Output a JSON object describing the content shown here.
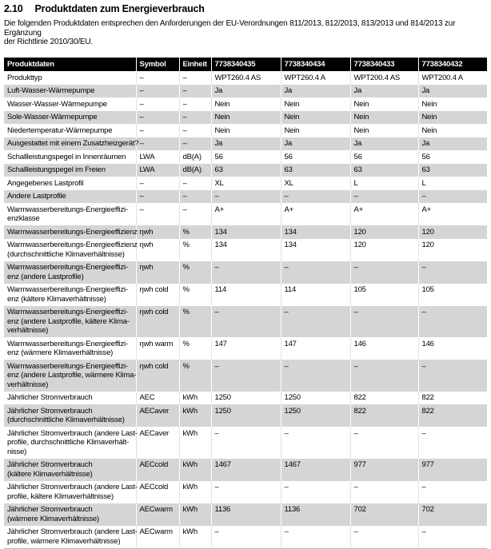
{
  "page": {
    "section_number": "2.10",
    "title": "Produktdaten zum Energieverbrauch",
    "intro": "Die folgenden Produktdaten entsprechen den Anforderungen der EU-Verordnungen 811/2013, 812/2013, 813/2013 und 814/2013 zur Ergänzung\nder Richtlinie 2010/30/EU."
  },
  "colors": {
    "header_bg": "#000000",
    "header_text": "#ffffff",
    "shaded_row_bg": "#d5d5d5",
    "text": "#000000"
  },
  "table": {
    "columns": [
      "Produktdaten",
      "Symbol",
      "Einheit",
      "7738340435",
      "7738340434",
      "7738340433",
      "7738340432"
    ],
    "rows": [
      {
        "label": "Produkttyp",
        "symbol": "–",
        "unit": "–",
        "values": [
          "WPT260.4 AS",
          "WPT260.4 A",
          "WPT200.4 AS",
          "WPT200.4 A"
        ]
      },
      {
        "label": "Luft-Wasser-Wärmepumpe",
        "symbol": "–",
        "unit": "–",
        "values": [
          "Ja",
          "Ja",
          "Ja",
          "Ja"
        ]
      },
      {
        "label": "Wasser-Wasser-Wärmepumpe",
        "symbol": "–",
        "unit": "–",
        "values": [
          "Nein",
          "Nein",
          "Nein",
          "Nein"
        ]
      },
      {
        "label": "Sole-Wasser-Wärmepumpe",
        "symbol": "–",
        "unit": "–",
        "values": [
          "Nein",
          "Nein",
          "Nein",
          "Nein"
        ]
      },
      {
        "label": "Niedertemperatur-Wärmepumpe",
        "symbol": "–",
        "unit": "–",
        "values": [
          "Nein",
          "Nein",
          "Nein",
          "Nein"
        ]
      },
      {
        "label": "Ausgestattet mit einem Zusatzheizgerät?",
        "symbol": "–",
        "unit": "–",
        "values": [
          "Ja",
          "Ja",
          "Ja",
          "Ja"
        ]
      },
      {
        "label": "Schallleistungspegel in Innenräumen",
        "symbol": "LWA",
        "unit": "dB(A)",
        "values": [
          "56",
          "56",
          "56",
          "56"
        ]
      },
      {
        "label": "Schallleistungspegel im Freien",
        "symbol": "LWA",
        "unit": "dB(A)",
        "values": [
          "63",
          "63",
          "63",
          "63"
        ]
      },
      {
        "label": "Angegebenes Lastprofil",
        "symbol": "–",
        "unit": "–",
        "values": [
          "XL",
          "XL",
          "L",
          "L"
        ]
      },
      {
        "label": "Andere Lastprofile",
        "symbol": "–",
        "unit": "–",
        "values": [
          "–",
          "–",
          "–",
          "–"
        ]
      },
      {
        "label": "Warmwasserbereitungs-Energieeffizi-\nenzklasse",
        "symbol": "–",
        "unit": "–",
        "values": [
          "A+",
          "A+",
          "A+",
          "A+"
        ]
      },
      {
        "label": "Warmwasserbereitungs-Energieeffizienz",
        "symbol": "ηwh",
        "unit": "%",
        "values": [
          "134",
          "134",
          "120",
          "120"
        ]
      },
      {
        "label": "Warmwasserbereitungs-Energieeffizienz\n(durchschnittliche Klimaverhältnisse)",
        "symbol": "ηwh",
        "unit": "%",
        "values": [
          "134",
          "134",
          "120",
          "120"
        ]
      },
      {
        "label": "Warmwasserbereitungs-Energieeffizi-\nenz (andere Lastprofile)",
        "symbol": "ηwh",
        "unit": "%",
        "values": [
          "–",
          "–",
          "–",
          "–"
        ]
      },
      {
        "label": "Warmwasserbereitungs-Energieeffizi-\nenz (kältere Klimaverhältnisse)",
        "symbol": "ηwh cold",
        "unit": "%",
        "values": [
          "114",
          "114",
          "105",
          "105"
        ]
      },
      {
        "label": "Warmwasserbereitungs-Energieeffizi-\nenz (andere Lastprofile, kältere Klima-\nverhältnisse)",
        "symbol": "ηwh cold",
        "unit": "%",
        "values": [
          "–",
          "–",
          "–",
          "–"
        ]
      },
      {
        "label": "Warmwasserbereitungs-Energieeffizi-\nenz (wärmere Klimaverhältnisse)",
        "symbol": "ηwh warm",
        "unit": "%",
        "values": [
          "147",
          "147",
          "146",
          "146"
        ]
      },
      {
        "label": "Warmwasserbereitungs-Energieeffizi-\nenz (andere Lastprofile, wärmere Klima-\nverhältnisse)",
        "symbol": "ηwh cold",
        "unit": "%",
        "values": [
          "–",
          "–",
          "–",
          "–"
        ]
      },
      {
        "label": "Jährlicher Stromverbrauch",
        "symbol": "AEC",
        "unit": "kWh",
        "values": [
          "1250",
          "1250",
          "822",
          "822"
        ]
      },
      {
        "label": "Jährlicher Stromverbrauch\n(durchschnittliche Klimaverhältnisse)",
        "symbol": "AECaver",
        "unit": "kWh",
        "values": [
          "1250",
          "1250",
          "822",
          "822"
        ]
      },
      {
        "label": "Jährlicher Stromverbrauch (andere Last-\nprofile, durchschnittliche Klimaverhält-\nnisse)",
        "symbol": "AECaver",
        "unit": "kWh",
        "values": [
          "–",
          "–",
          "–",
          "–"
        ]
      },
      {
        "label": "Jährlicher Stromverbrauch\n(kältere Klimaverhältnisse)",
        "symbol": "AECcold",
        "unit": "kWh",
        "values": [
          "1467",
          "1467",
          "977",
          "977"
        ]
      },
      {
        "label": "Jährlicher Stromverbrauch (andere Last-\nprofile, kältere Klimaverhältnisse)",
        "symbol": "AECcold",
        "unit": "kWh",
        "values": [
          "–",
          "–",
          "–",
          "–"
        ]
      },
      {
        "label": "Jährlicher Stromverbrauch\n(wärmere Klimaverhältnisse)",
        "symbol": "AECwarm",
        "unit": "kWh",
        "values": [
          "1136",
          "1136",
          "702",
          "702"
        ]
      },
      {
        "label": "Jährlicher Stromverbrauch (andere Last-\nprofile, wärmere Klimaverhältnisse)",
        "symbol": "AECwarm",
        "unit": "kWh",
        "values": [
          "–",
          "–",
          "–",
          "–"
        ]
      }
    ]
  }
}
